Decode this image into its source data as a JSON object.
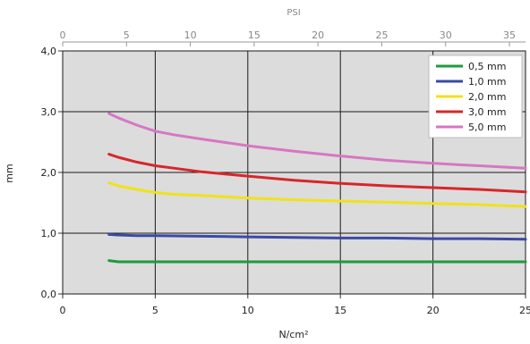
{
  "chart_data": {
    "type": "line",
    "title": "",
    "xlabel": "N/cm²",
    "ylabel": "mm",
    "x2label": "PSI",
    "xlim": [
      0,
      25
    ],
    "ylim": [
      0,
      4
    ],
    "x2lim": [
      0,
      36.26
    ],
    "xticks": [
      0,
      5,
      10,
      15,
      20,
      25
    ],
    "xtick_labels": [
      "0",
      "5",
      "10",
      "15",
      "20",
      "25"
    ],
    "yticks": [
      0,
      1,
      2,
      3,
      4
    ],
    "ytick_labels": [
      "0,0",
      "1,0",
      "2,0",
      "3,0",
      "4,0"
    ],
    "x2ticks": [
      0,
      5,
      10,
      15,
      20,
      25,
      30,
      35
    ],
    "x2tick_labels": [
      "0",
      "5",
      "10",
      "15",
      "20",
      "25",
      "30",
      "35"
    ],
    "grid": true,
    "legend_position": "top-right",
    "series": [
      {
        "name": "0,5 mm",
        "color": "#1e9a3c",
        "x": [
          2.5,
          3,
          4,
          5,
          7.5,
          10,
          12.5,
          15,
          17.5,
          20,
          22.5,
          25
        ],
        "y": [
          0.55,
          0.53,
          0.53,
          0.53,
          0.53,
          0.53,
          0.53,
          0.53,
          0.53,
          0.53,
          0.53,
          0.53
        ]
      },
      {
        "name": "1,0 mm",
        "color": "#3a4aa6",
        "x": [
          2.5,
          3,
          4,
          5,
          7.5,
          10,
          12.5,
          15,
          17.5,
          20,
          22.5,
          25
        ],
        "y": [
          0.98,
          0.97,
          0.96,
          0.96,
          0.95,
          0.94,
          0.93,
          0.92,
          0.92,
          0.91,
          0.91,
          0.9
        ]
      },
      {
        "name": "2,0 mm",
        "color": "#f0e21a",
        "x": [
          2.5,
          3,
          4,
          5,
          6,
          7.5,
          10,
          12.5,
          15,
          17.5,
          20,
          22.5,
          25
        ],
        "y": [
          1.83,
          1.78,
          1.72,
          1.67,
          1.64,
          1.62,
          1.58,
          1.55,
          1.53,
          1.51,
          1.49,
          1.47,
          1.44
        ]
      },
      {
        "name": "3,0 mm",
        "color": "#d8262a",
        "x": [
          2.5,
          3,
          4,
          5,
          6,
          7.5,
          10,
          12.5,
          15,
          17.5,
          20,
          22.5,
          25
        ],
        "y": [
          2.3,
          2.25,
          2.17,
          2.11,
          2.07,
          2.01,
          1.94,
          1.87,
          1.82,
          1.78,
          1.75,
          1.72,
          1.68
        ]
      },
      {
        "name": "5,0 mm",
        "color": "#d776c4",
        "x": [
          2.5,
          3,
          4,
          5,
          6,
          7.5,
          10,
          12.5,
          15,
          17.5,
          20,
          22.5,
          25
        ],
        "y": [
          2.97,
          2.9,
          2.78,
          2.68,
          2.62,
          2.55,
          2.44,
          2.35,
          2.27,
          2.2,
          2.15,
          2.11,
          2.07
        ]
      }
    ]
  }
}
